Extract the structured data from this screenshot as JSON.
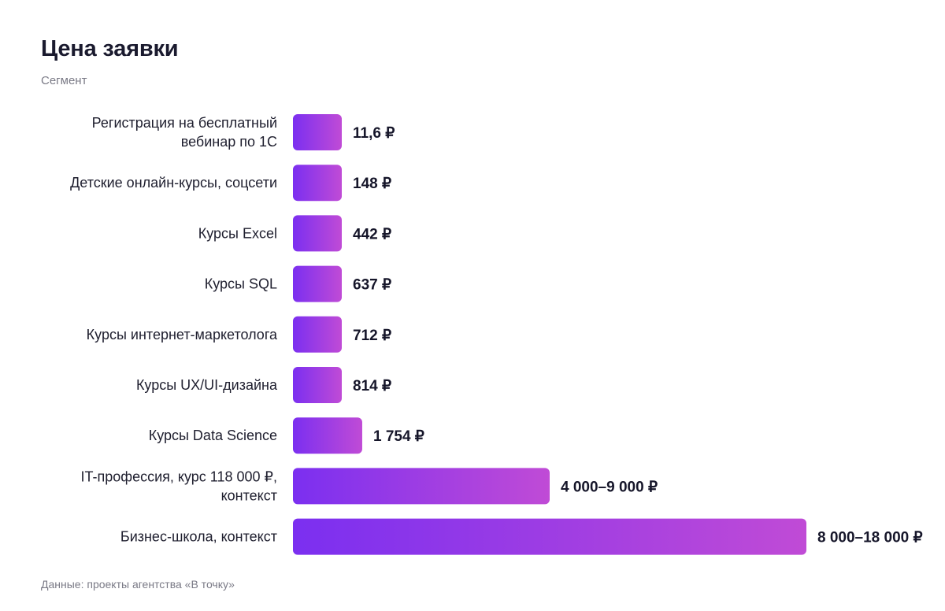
{
  "title": "Цена заявки",
  "subtitle": "Сегмент",
  "source": "Данные: проекты агентства «В точку»",
  "colors": {
    "bar_start": "#7b2ff0",
    "bar_end": "#c04bd6",
    "label": "#1e1e2e",
    "value": "#16162a",
    "muted": "#7a7a86"
  },
  "chart_data": {
    "type": "bar",
    "orientation": "horizontal",
    "title": "Цена заявки",
    "ylabel": "Сегмент",
    "xlabel": "",
    "grid": false,
    "categories": [
      [
        "Регистрация на бесплатный",
        "вебинар по 1С"
      ],
      [
        "Детские онлайн-курсы, соцсети"
      ],
      [
        "Курсы Excel"
      ],
      [
        "Курсы SQL"
      ],
      [
        "Курсы интернет-маркетолога"
      ],
      [
        "Курсы UX/UI-дизайна"
      ],
      [
        "Курсы Data Science"
      ],
      [
        "IT-профессия, курс 118 000 ₽,",
        "контекст"
      ],
      [
        "Бизнес-школа, контекст"
      ]
    ],
    "values": [
      11.6,
      148,
      442,
      637,
      712,
      814,
      1754,
      6500,
      13000
    ],
    "ranges": [
      null,
      null,
      null,
      null,
      null,
      null,
      null,
      [
        4000,
        9000
      ],
      [
        8000,
        18000
      ]
    ],
    "value_labels": [
      "11,6 ₽",
      "148 ₽",
      "442 ₽",
      "637 ₽",
      "712 ₽",
      "814 ₽",
      "1 754 ₽",
      "4 000–9 000 ₽",
      "8 000–18 000 ₽"
    ],
    "xlim": [
      0,
      13000
    ]
  }
}
